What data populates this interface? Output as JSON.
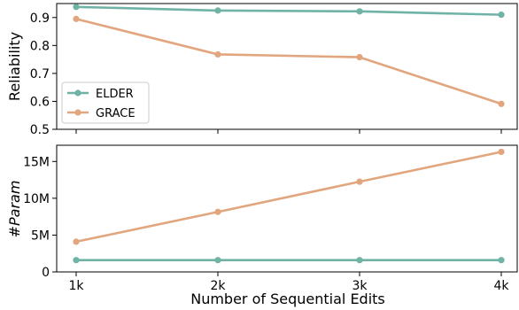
{
  "chart_data": [
    {
      "type": "line",
      "x": [
        "1k",
        "2k",
        "3k",
        "4k"
      ],
      "ylabel": "Reliability",
      "ylim": [
        0.5,
        0.95
      ],
      "yticks": [
        "0.5",
        "0.6",
        "0.7",
        "0.8",
        "0.9"
      ],
      "ytick_values": [
        0.5,
        0.6,
        0.7,
        0.8,
        0.9
      ],
      "legend": "center-left",
      "grid": false,
      "series": [
        {
          "name": "ELDER",
          "color": "#6fb3a6",
          "values": [
            0.938,
            0.925,
            0.922,
            0.91
          ]
        },
        {
          "name": "GRACE",
          "color": "#e2a67f",
          "values": [
            0.895,
            0.768,
            0.758,
            0.591
          ]
        }
      ]
    },
    {
      "type": "line",
      "x": [
        "1k",
        "2k",
        "3k",
        "4k"
      ],
      "xlabel": "Number of Sequential Edits",
      "ylabel": "#Param",
      "ylim": [
        0,
        17.2
      ],
      "yticks": [
        "0",
        "5M",
        "10M",
        "15M"
      ],
      "ytick_values": [
        0,
        5,
        10,
        15
      ],
      "xticks": [
        "1k",
        "2k",
        "3k",
        "4k"
      ],
      "grid": false,
      "series": [
        {
          "name": "ELDER",
          "color": "#6fb3a6",
          "values": [
            1.6,
            1.6,
            1.6,
            1.6
          ]
        },
        {
          "name": "GRACE",
          "color": "#e2a67f",
          "values": [
            4.1,
            8.15,
            12.25,
            16.3
          ]
        }
      ]
    }
  ]
}
